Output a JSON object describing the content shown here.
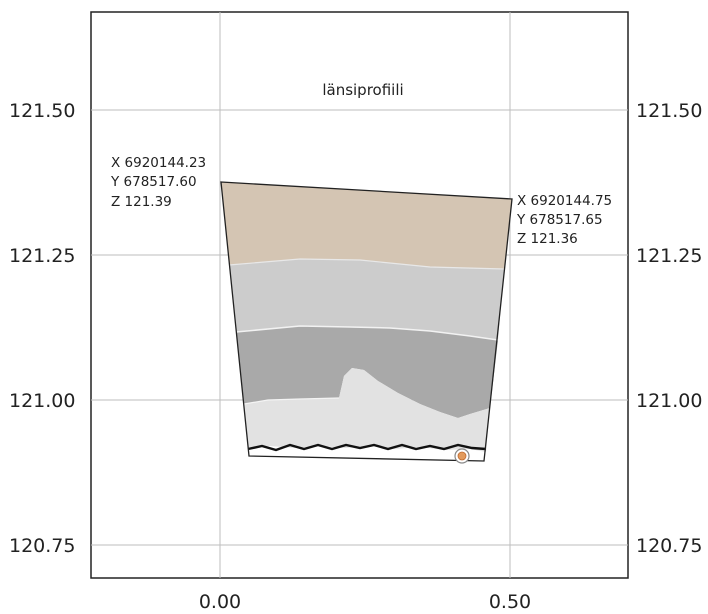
{
  "title": "länsiprofiili",
  "y_ticks": [
    {
      "value": 121.5,
      "label": "121.50"
    },
    {
      "value": 121.25,
      "label": "121.25"
    },
    {
      "value": 121.0,
      "label": "121.00"
    },
    {
      "value": 120.75,
      "label": "120.75"
    }
  ],
  "x_ticks": [
    {
      "value": 0.0,
      "label": "0.00"
    },
    {
      "value": 0.5,
      "label": "0.50"
    }
  ],
  "corner_left": {
    "x": "X 6920144.23",
    "y": "Y 678517.60",
    "z": "Z 121.39"
  },
  "corner_right": {
    "x": "X 6920144.75",
    "y": "Y 678517.65",
    "z": "Z 121.36"
  },
  "layer_colors": {
    "top_soil": "#d4c5b3",
    "light_grey": "#cccccc",
    "dark_grey": "#aaaaaa",
    "bottom_light": "#e0e0e0",
    "marker": "#e39a5c"
  }
}
